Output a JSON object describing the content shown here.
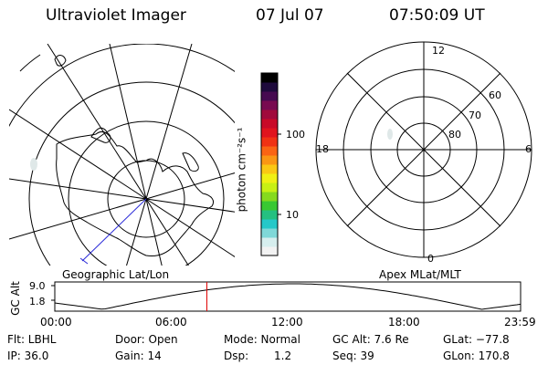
{
  "header": {
    "instrument": "Ultraviolet Imager",
    "date": "07 Jul 07",
    "time": "07:50:09 UT"
  },
  "colorbar": {
    "unit_label": "photon cm⁻²s⁻¹",
    "ticks": [
      "100",
      "10"
    ],
    "colors": [
      "#f2f2f2",
      "#d6eeee",
      "#7fd8d8",
      "#25c8c8",
      "#25c080",
      "#39c832",
      "#86da1d",
      "#c8f014",
      "#f0f014",
      "#fac814",
      "#fa9614",
      "#fa6414",
      "#f03214",
      "#e0141e",
      "#c80a28",
      "#a00a3c",
      "#780a50",
      "#460a50",
      "#1e0a3c",
      "#000000"
    ]
  },
  "map_left": {
    "label": "Geographic Lat/Lon"
  },
  "map_right": {
    "label": "Apex MLat/MLT",
    "mlt_labels": {
      "top": "12",
      "left": "18",
      "right": "6",
      "bottom": "0"
    },
    "mlat_labels": [
      "60",
      "70",
      "80"
    ]
  },
  "altitude_plot": {
    "ylabel": "GC Alt",
    "yticks": [
      "9.0",
      "1.8"
    ],
    "xticks": [
      "00:00",
      "06:00",
      "12:00",
      "18:00",
      "23:59"
    ],
    "current_hour": 7.836
  },
  "status": {
    "row1": {
      "filter": "Flt: LBHL",
      "door": "Door: Open",
      "mode": "Mode: Normal",
      "gc_alt": "GC Alt: 7.6 Re",
      "glat": "GLat: −77.8"
    },
    "row2": {
      "ip": "IP: 36.0",
      "gain": "Gain: 14",
      "dsp_label": "Dsp:",
      "dsp_value": "1.2",
      "seq": "Seq: 39",
      "glon": "GLon: 170.8"
    }
  }
}
